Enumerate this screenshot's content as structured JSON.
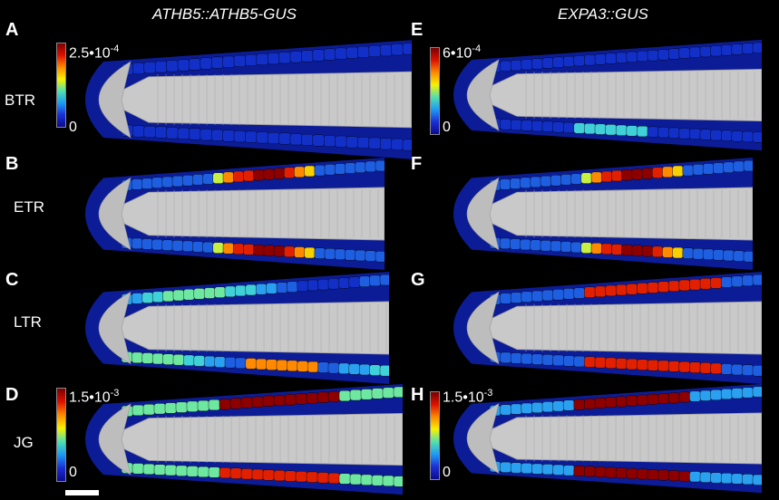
{
  "column_titles": {
    "left": "ATHB5::ATHB5-GUS",
    "right": "EXPA3::GUS"
  },
  "panels": [
    {
      "letter": "A",
      "stage": "BTR",
      "max": "2.5•10",
      "exp": "-4",
      "zero": "0"
    },
    {
      "letter": "B",
      "stage": "ETR"
    },
    {
      "letter": "C",
      "stage": "LTR"
    },
    {
      "letter": "D",
      "stage": "JG",
      "max": "1.5•10",
      "exp": "-3",
      "zero": "0"
    },
    {
      "letter": "E",
      "max": "6•10",
      "exp": "-4",
      "zero": "0"
    },
    {
      "letter": "F"
    },
    {
      "letter": "G"
    },
    {
      "letter": "H",
      "max": "1.5•10",
      "exp": "-3",
      "zero": "0"
    }
  ],
  "colors": {
    "background": "#000000",
    "tissue_gray": "#c9c9c9",
    "low": "#0a1aa0",
    "high": "#8c0000"
  }
}
